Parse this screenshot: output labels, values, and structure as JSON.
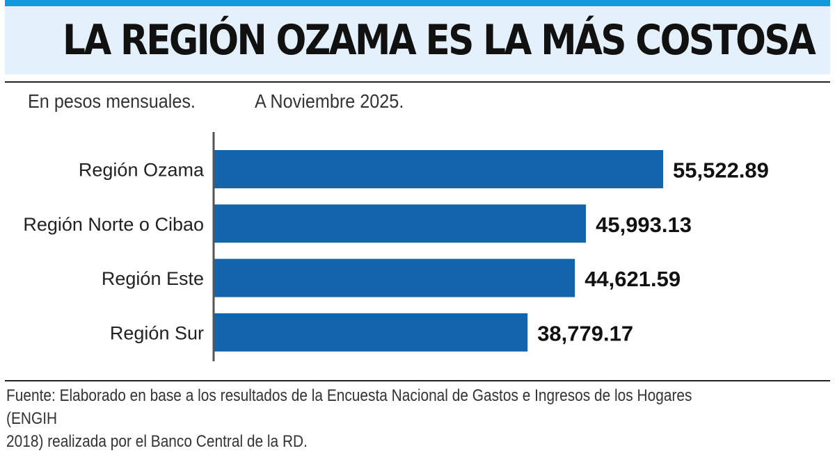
{
  "colors": {
    "accent_stripe": "#1199dd",
    "title_band": "#e4f0fb",
    "bar": "#1463ad",
    "axis": "#555555"
  },
  "title": "LA REGIÓN OZAMA ES LA MÁS COSTOSA",
  "subtitle": {
    "unit": "En pesos mensuales.",
    "date": "A Noviembre 2025."
  },
  "chart_data": {
    "type": "bar",
    "orientation": "horizontal",
    "title": "LA REGIÓN OZAMA ES LA MÁS COSTOSA",
    "xlabel": "",
    "ylabel": "",
    "unit": "pesos mensuales",
    "categories": [
      "Región Ozama",
      "Región Norte o Cibao",
      "Región Este",
      "Región Sur"
    ],
    "values": [
      55522.89,
      45993.13,
      44621.59,
      38779.17
    ],
    "value_labels": [
      "55,522.89",
      "45,993.13",
      "44,621.59",
      "38,779.17"
    ],
    "xlim": [
      0,
      55522.89
    ],
    "grid": false,
    "legend": "none"
  },
  "footer": {
    "source_line_1": "Fuente: Elaborado en base a los resultados de la Encuesta Nacional de Gastos e Ingresos de los Hogares (ENGIH",
    "source_line_2": "2018) realizada por el Banco Central de la RD."
  }
}
